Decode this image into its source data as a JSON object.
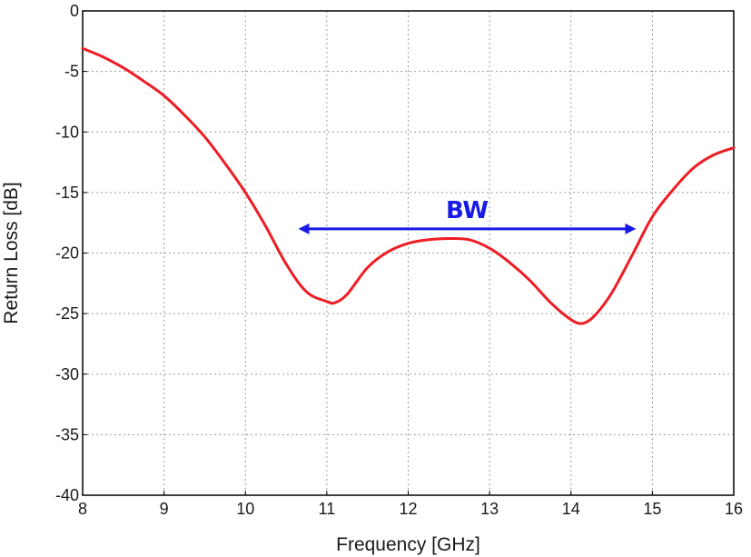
{
  "chart_data": {
    "type": "line",
    "xlabel": "Frequency [GHz]",
    "ylabel": "Return Loss [dB]",
    "xlim": [
      8,
      16
    ],
    "ylim": [
      -40,
      0
    ],
    "x_ticks": [
      8,
      9,
      10,
      11,
      12,
      13,
      14,
      15,
      16
    ],
    "y_ticks": [
      0,
      -5,
      -10,
      -15,
      -20,
      -25,
      -30,
      -35,
      -40
    ],
    "grid": true,
    "series": [
      {
        "color": "#ee1c24",
        "x": [
          8.0,
          8.25,
          8.5,
          8.75,
          9.0,
          9.25,
          9.5,
          9.75,
          10.0,
          10.25,
          10.5,
          10.75,
          11.0,
          11.1,
          11.25,
          11.5,
          11.75,
          12.0,
          12.25,
          12.5,
          12.75,
          13.0,
          13.25,
          13.5,
          13.75,
          14.0,
          14.15,
          14.3,
          14.5,
          14.75,
          15.0,
          15.25,
          15.5,
          15.75,
          16.0
        ],
        "y": [
          -3.1,
          -3.8,
          -4.7,
          -5.8,
          -7.0,
          -8.6,
          -10.4,
          -12.6,
          -15.0,
          -17.8,
          -20.9,
          -23.2,
          -24.0,
          -24.1,
          -23.4,
          -21.2,
          -19.9,
          -19.2,
          -18.9,
          -18.8,
          -18.9,
          -19.6,
          -20.8,
          -22.3,
          -24.1,
          -25.5,
          -25.8,
          -25.1,
          -23.3,
          -20.2,
          -17.0,
          -14.8,
          -13.0,
          -11.9,
          -11.3
        ]
      }
    ],
    "annotations": [
      {
        "type": "double-arrow",
        "label": "BW",
        "x_start": 10.65,
        "x_end": 14.8,
        "y": -18,
        "color": "#1a1ae6"
      }
    ]
  }
}
